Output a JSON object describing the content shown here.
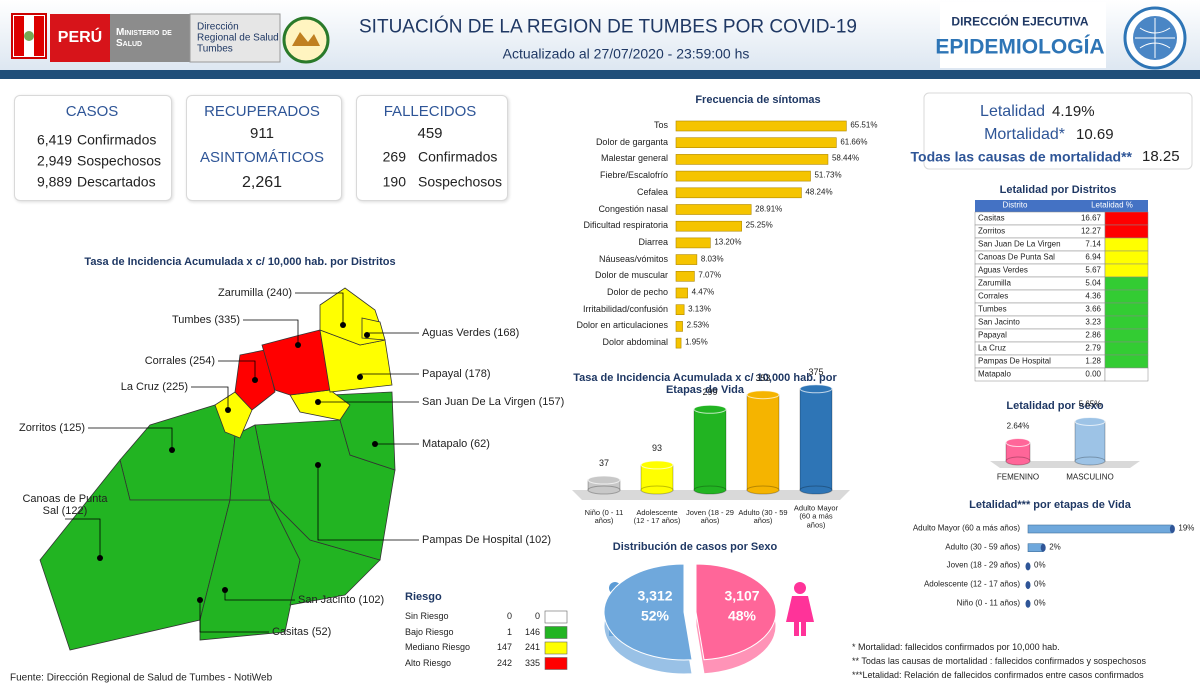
{
  "header": {
    "country": "PERÚ",
    "ministry": "Ministerio de Salud",
    "direction": "Dirección Regional de Salud Tumbes",
    "title": "SITUACIÓN DE LA REGION DE TUMBES POR COVID-19",
    "subtitle": "Actualizado al 27/07/2020 - 23:59:00 hs",
    "unit": "DIRECCIÓN EJECUTIVA",
    "unit_name": "EPIDEMIOLOGÍA"
  },
  "cases": {
    "title": "CASOS",
    "rows": [
      {
        "value": "6,419",
        "label": "Confirmados"
      },
      {
        "value": "2,949",
        "label": "Sospechosos"
      },
      {
        "value": "9,889",
        "label": "Descartados"
      }
    ]
  },
  "recovered": {
    "title": "RECUPERADOS",
    "value": 911,
    "asymptomatic_title": "ASINTOMÁTICOS",
    "asymptomatic": "2,261"
  },
  "deaths": {
    "title": "FALLECIDOS",
    "value": 459,
    "rows": [
      {
        "value": 269,
        "label": "Confirmados"
      },
      {
        "value": 190,
        "label": "Sospechosos"
      }
    ]
  },
  "rates": [
    {
      "label": "Letalidad",
      "value": "4.19%"
    },
    {
      "label": "Mortalidad*",
      "value": "10.69"
    },
    {
      "label": "Todas las causas de mortalidad**",
      "value": "18.25"
    }
  ],
  "district_table": {
    "title": "Letalidad por Distritos",
    "header": [
      "Distrito",
      "Letalidad %"
    ],
    "rows": [
      {
        "name": "Casitas",
        "value": "16.67",
        "color": "#ff0000"
      },
      {
        "name": "Zorritos",
        "value": "12.27",
        "color": "#ff0000"
      },
      {
        "name": "San Juan De La Virgen",
        "value": "7.14",
        "color": "#ffff00"
      },
      {
        "name": "Canoas De Punta Sal",
        "value": "6.94",
        "color": "#ffff00"
      },
      {
        "name": "Aguas Verdes",
        "value": "5.67",
        "color": "#ffff00"
      },
      {
        "name": "Zarumilla",
        "value": "5.04",
        "color": "#33cc33"
      },
      {
        "name": "Corrales",
        "value": "4.36",
        "color": "#33cc33"
      },
      {
        "name": "Tumbes",
        "value": "3.66",
        "color": "#33cc33"
      },
      {
        "name": "San Jacinto",
        "value": "3.23",
        "color": "#33cc33"
      },
      {
        "name": "Papayal",
        "value": "2.86",
        "color": "#33cc33"
      },
      {
        "name": "La Cruz",
        "value": "2.79",
        "color": "#33cc33"
      },
      {
        "name": "Pampas De Hospital",
        "value": "1.28",
        "color": "#33cc33"
      },
      {
        "name": "Matapalo",
        "value": "0.00",
        "color": "#ffffff"
      }
    ]
  },
  "map": {
    "title": "Tasa de Incidencia Acumulada x c/ 10,000 hab. por Distritos",
    "districts": [
      "Zarumilla (240)",
      "Tumbes (335)",
      "Aguas Verdes (168)",
      "Corrales (254)",
      "Papayal (178)",
      "La Cruz (225)",
      "San Juan De La Virgen (157)",
      "Zorritos (125)",
      "Matapalo (62)",
      "Canoas de Punta Sal (122)",
      "Pampas De Hospital (102)",
      "San Jacinto (102)",
      "Casitas (52)"
    ],
    "legend": {
      "title": "Riesgo",
      "rows": [
        {
          "name": "Sin Riesgo",
          "from": 0,
          "to": 0,
          "color": "#ffffff"
        },
        {
          "name": "Bajo Riesgo",
          "from": 1,
          "to": 146,
          "color": "#22b422"
        },
        {
          "name": "Mediano Riesgo",
          "from": 147,
          "to": 241,
          "color": "#ffff00"
        },
        {
          "name": "Alto Riesgo",
          "from": 242,
          "to": 335,
          "color": "#ff0000"
        }
      ]
    }
  },
  "chart_data": [
    {
      "type": "hbar",
      "title": "Frecuencia de síntomas",
      "color": "#f5c400",
      "categories": [
        "Tos",
        "Dolor de garganta",
        "Malestar general",
        "Fiebre/Escalofrío",
        "Cefalea",
        "Congestión nasal",
        "Dificultad respiratoria",
        "Diarrea",
        "Náuseas/vómitos",
        "Dolor de muscular",
        "Dolor de pecho",
        "Irritabilidad/confusión",
        "Dolor en articulaciones",
        "Dolor abdominal"
      ],
      "values": [
        65.51,
        61.66,
        58.44,
        51.73,
        48.24,
        28.91,
        25.25,
        13.2,
        8.03,
        7.07,
        4.47,
        3.13,
        2.53,
        1.95
      ],
      "value_labels": [
        "65.51%",
        "61.66%",
        "58.44%",
        "51.73%",
        "48.24%",
        "28.91%",
        "25.25%",
        "13.20%",
        "8.03%",
        "7.07%",
        "4.47%",
        "3.13%",
        "2.53%",
        "1.95%"
      ]
    },
    {
      "type": "cylinder",
      "title": "Tasa de Incidencia Acumulada x c/ 10,000 hab. por Etapas de Vida",
      "categories": [
        "Niño (0 - 11 años)",
        "Adolescente (12 - 17 años)",
        "Joven (18 - 29 años)",
        "Adulto (30 - 59 años)",
        "Adulto Mayor (60 a más años)"
      ],
      "values": [
        37,
        93,
        299,
        353,
        375
      ],
      "colors": [
        "#c8c8c8",
        "#ffff00",
        "#22b422",
        "#f5b400",
        "#2e75b6"
      ]
    },
    {
      "type": "pie",
      "title": "Distribución de casos por Sexo",
      "values": [
        3312,
        3107
      ],
      "value_labels": [
        "3,312",
        "3,107"
      ],
      "shares": [
        52,
        48
      ],
      "share_labels": [
        "52%",
        "48%"
      ],
      "colors": [
        "#6fa8dc",
        "#ff6699"
      ]
    },
    {
      "type": "cylinder-small",
      "title": "Letalidad por sexo",
      "categories": [
        "FEMENINO",
        "MASCULINO"
      ],
      "values": [
        2.64,
        5.65
      ],
      "value_labels": [
        "2.64%",
        "5.65%"
      ],
      "colors": [
        "#ff6699",
        "#9dc3e6"
      ]
    },
    {
      "type": "hbar-small",
      "title": "Letalidad*** por etapas de Vida",
      "color": "#6fa8dc",
      "categories": [
        "Adulto Mayor (60 a más años)",
        "Adulto (30 - 59 años)",
        "Joven (18 - 29 años)",
        "Adolescente (12 - 17 años)",
        "Niño (0 - 11 años)"
      ],
      "values": [
        19,
        2,
        0,
        0,
        0
      ],
      "value_labels": [
        "19%",
        "2%",
        "0%",
        "0%",
        "0%"
      ]
    }
  ],
  "notes": [
    "* Mortalidad: fallecidos confirmados por 10,000 hab.",
    "** Todas las causas de mortalidad : fallecidos confirmados y sospechosos",
    "***Letalidad: Relación de fallecidos confirmados entre casos confirmados"
  ],
  "source": "Fuente: Dirección Regional de Salud de Tumbes - NotiWeb"
}
